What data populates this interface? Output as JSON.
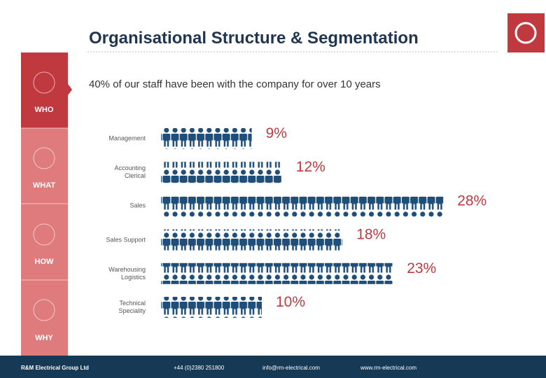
{
  "title": "Organisational Structure & Segmentation",
  "subtitle": "40% of our staff have been with the company for over 10 years",
  "sidebar": [
    "WHO",
    "WHAT",
    "HOW",
    "WHY"
  ],
  "footer": {
    "company": "R&M Electrical Group Ltd",
    "phone": "+44 (0)2380 251800",
    "email": "info@rm-electrical.com",
    "web": "www.rm-electrical.com"
  },
  "chart_data": {
    "type": "pictograph",
    "categories": [
      "Management",
      "Accounting Clerical",
      "Sales",
      "Sales Support",
      "Warehousing Logistics",
      "Technical Speciality"
    ],
    "values": [
      9,
      12,
      28,
      18,
      23,
      10
    ],
    "value_labels": [
      "9%",
      "12%",
      "28%",
      "18%",
      "23%",
      "10%"
    ],
    "color": "#1e4e79",
    "label_color": "#c0393f"
  }
}
